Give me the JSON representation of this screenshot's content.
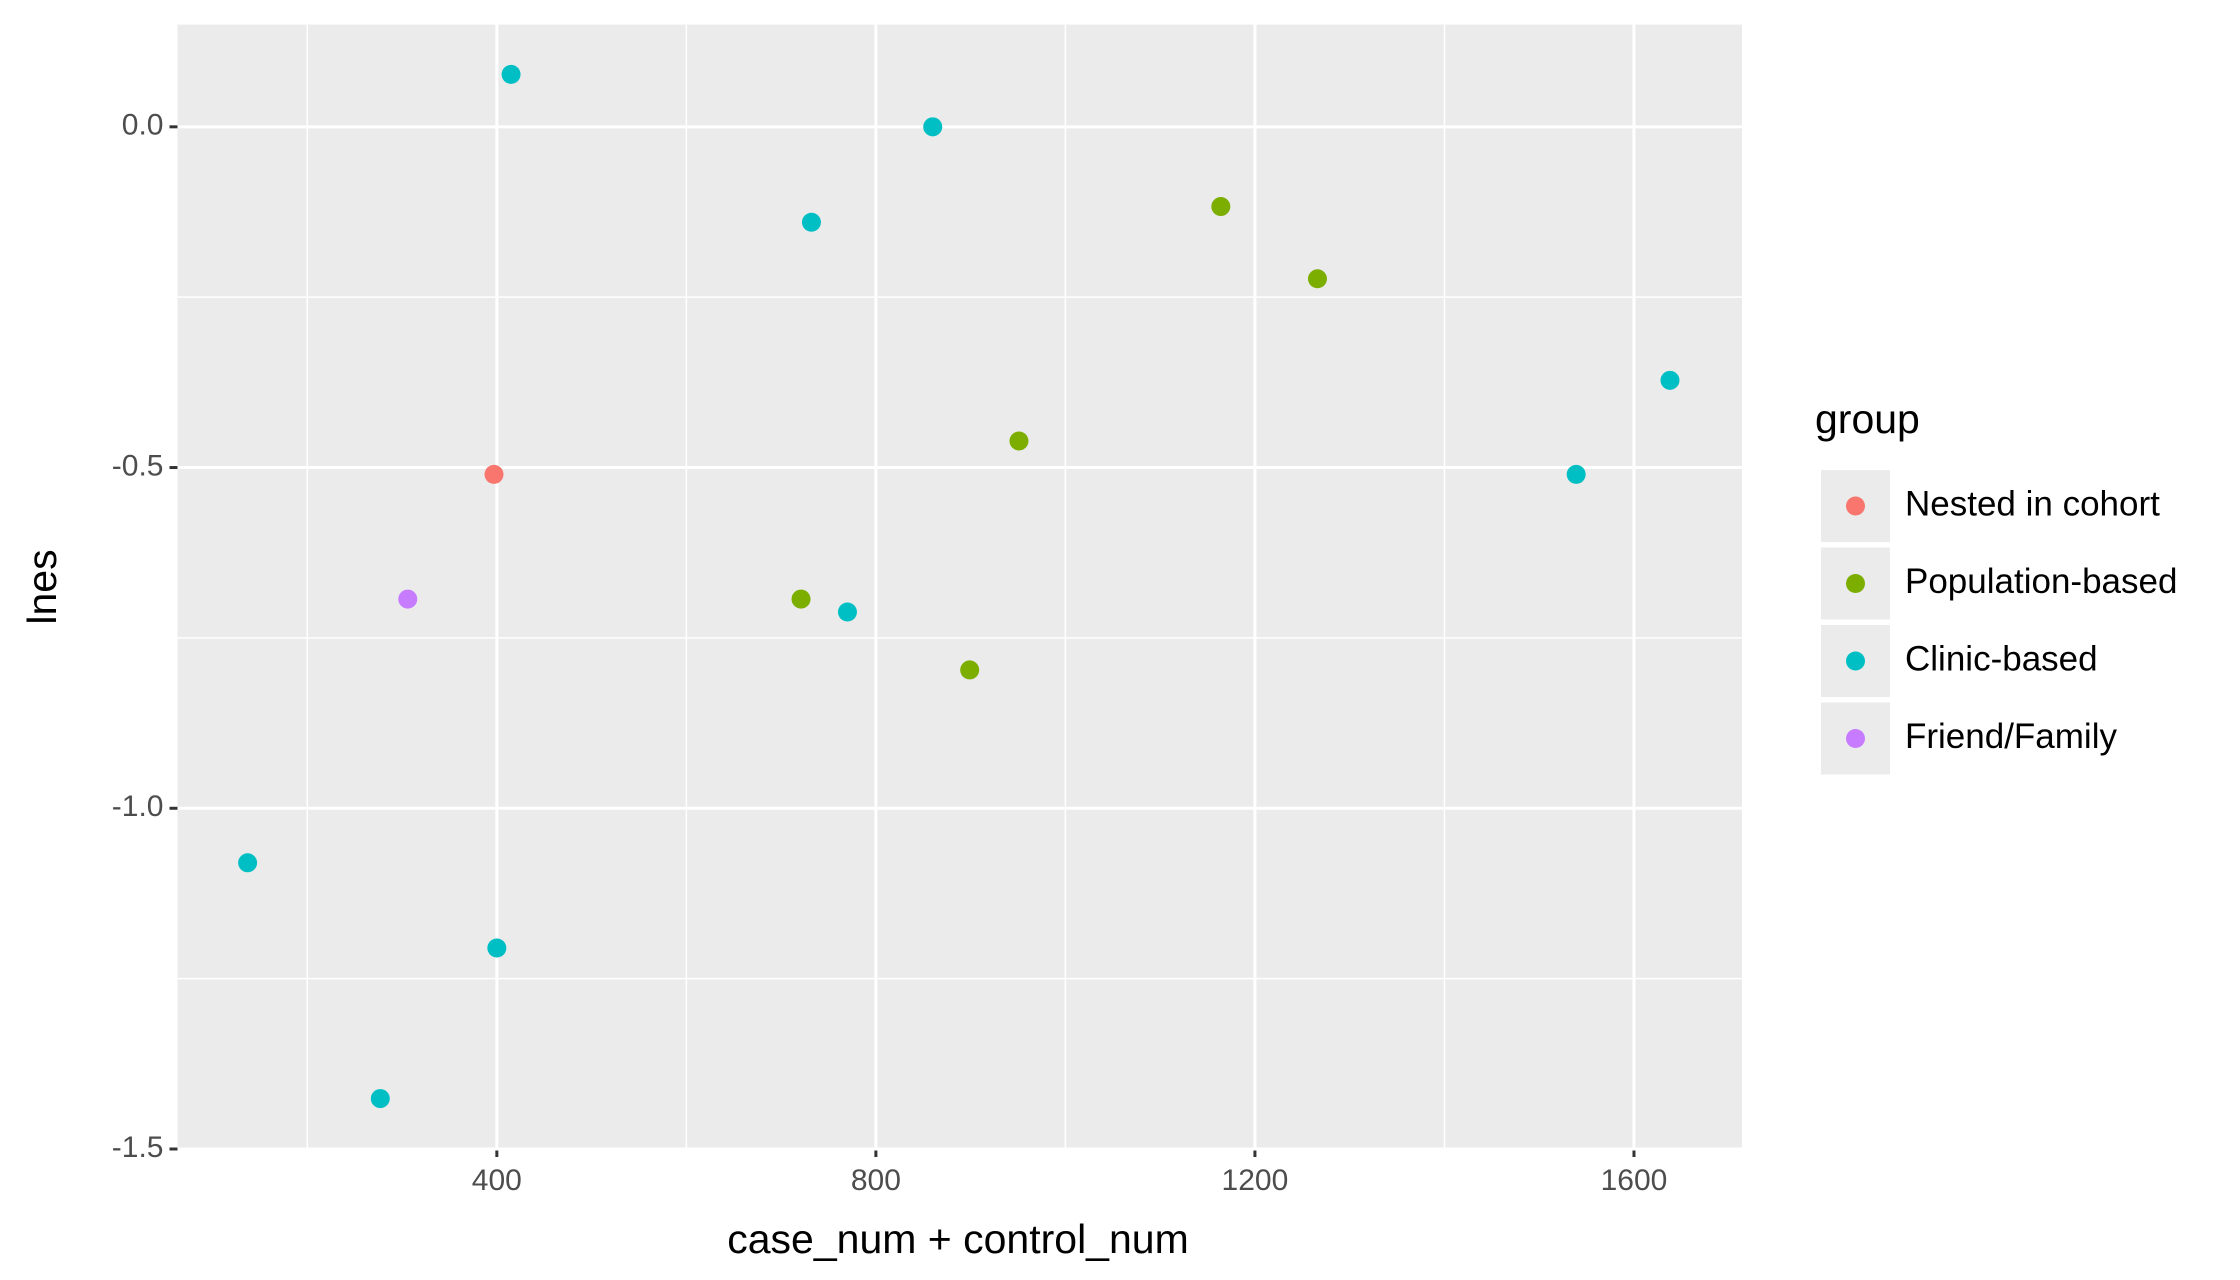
{
  "chart_data": {
    "type": "scatter",
    "xlabel": "case_num + control_num",
    "ylabel": "lnes",
    "legend_title": "group",
    "legend_position": "right",
    "xlim": [
      63,
      1714
    ],
    "ylim": [
      -1.5,
      0.15
    ],
    "xticks": [
      400,
      800,
      1200,
      1600
    ],
    "yticks": [
      {
        "value": 0,
        "label": "0.0"
      },
      {
        "value": -0.5,
        "label": "-0.5"
      },
      {
        "value": -1,
        "label": "-1.0"
      },
      {
        "value": -1.5,
        "label": "-1.5"
      }
    ],
    "xminor": [
      200,
      600,
      1000,
      1400
    ],
    "yminor": [
      -1.25,
      -0.75,
      -0.25
    ],
    "grid": true,
    "series": [
      {
        "name": "Nested in cohort",
        "color": "#F8766D",
        "x": [
          397
        ],
        "y": [
          -0.51
        ]
      },
      {
        "name": "Population-based",
        "color": "#7CAE00",
        "x": [
          1164,
          1266,
          951,
          721,
          899
        ],
        "y": [
          -0.117,
          -0.223,
          -0.461,
          -0.693,
          -0.797
        ]
      },
      {
        "name": "Clinic-based",
        "color": "#00BFC4",
        "x": [
          415,
          860,
          732,
          1638,
          1539,
          770,
          137,
          400,
          277
        ],
        "y": [
          0.077,
          0,
          -0.14,
          -0.372,
          -0.51,
          -0.712,
          -1.08,
          -1.205,
          -1.426
        ]
      },
      {
        "name": "Friend/Family",
        "color": "#C77CFF",
        "x": [
          306
        ],
        "y": [
          -0.693
        ]
      }
    ]
  }
}
